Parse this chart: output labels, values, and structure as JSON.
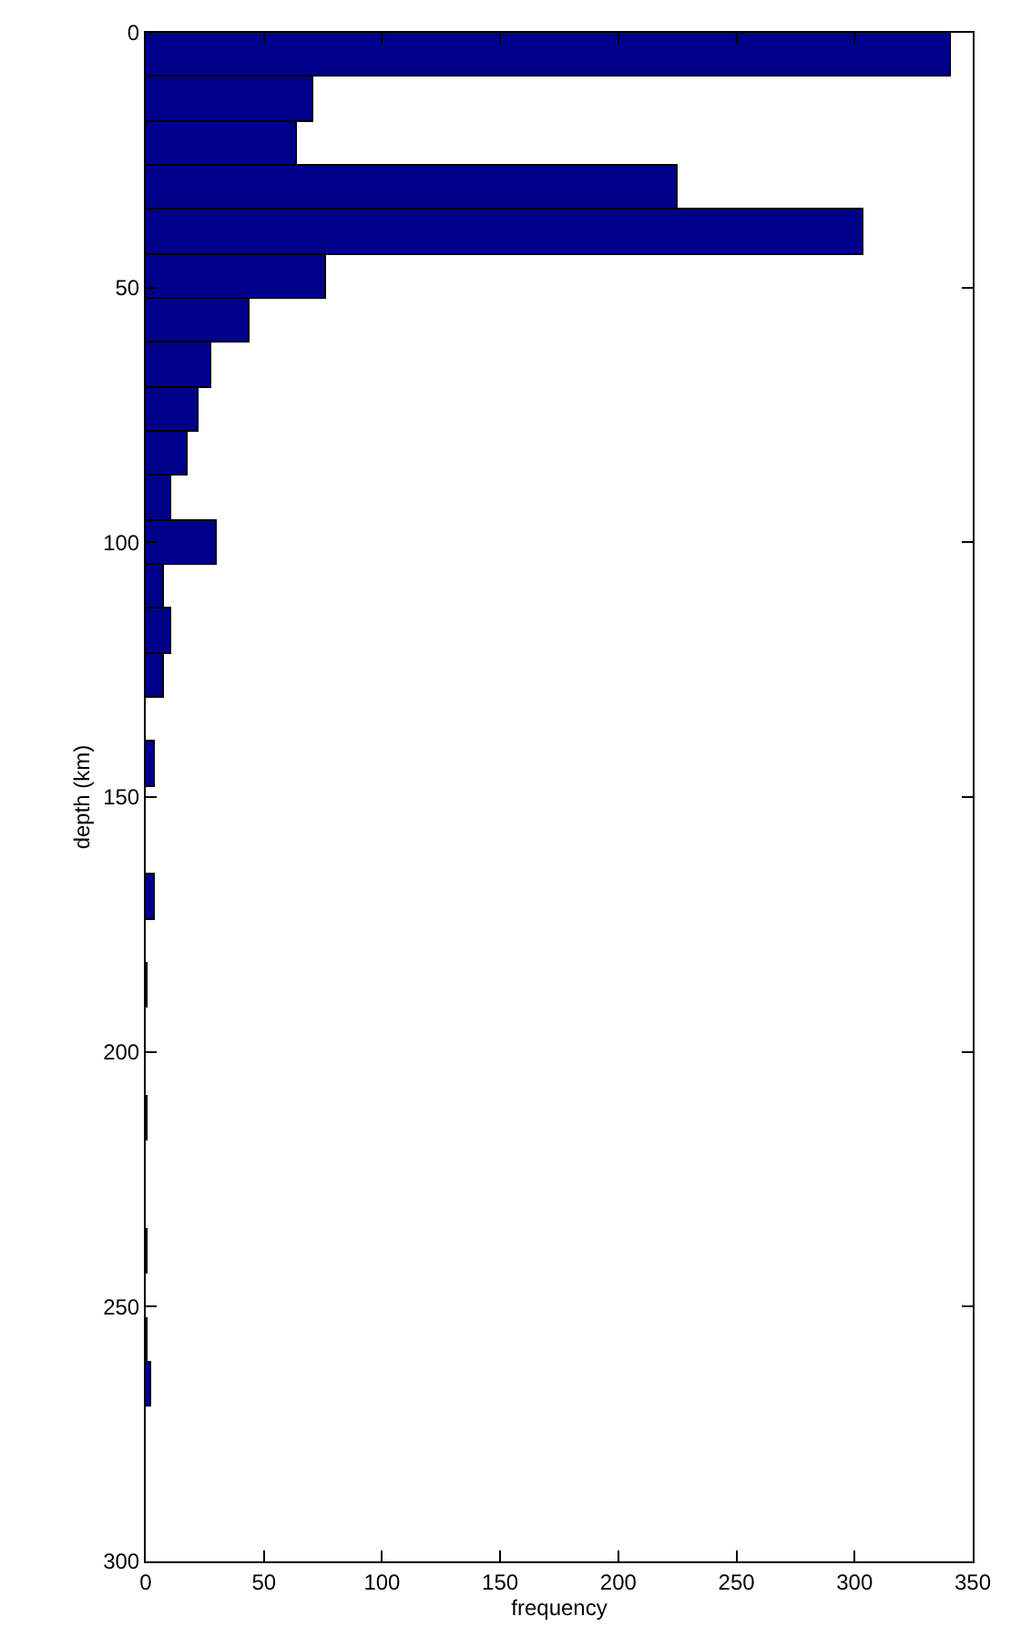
{
  "chart_data": {
    "type": "histogram",
    "orientation": "horizontal",
    "xlabel": "frequency",
    "ylabel": "depth (km)",
    "bins": [
      0,
      8.7,
      17.4,
      26.1,
      34.8,
      43.5,
      52.2,
      60.9,
      69.6,
      78.3,
      87,
      95.7,
      104.4,
      113.1,
      121.8,
      130.5,
      139.2,
      147.9,
      156.6,
      165.3,
      174,
      182.7,
      191.4,
      200.1,
      208.8,
      217.5,
      226.2,
      234.9,
      243.6,
      252.3,
      261,
      269.7
    ],
    "values": [
      341,
      71,
      64,
      225,
      304,
      76,
      44,
      28,
      22,
      18,
      11,
      30,
      8,
      11,
      8,
      0,
      4,
      0,
      0,
      4,
      0,
      1,
      0,
      0,
      1,
      0,
      0,
      1,
      0,
      1,
      2
    ],
    "color": "#00008b",
    "xlim": [
      0,
      350
    ],
    "xticks": [
      0,
      50,
      100,
      150,
      200,
      250,
      300,
      350
    ],
    "ylim": [
      300,
      0
    ],
    "yticks": [
      0,
      50,
      100,
      150,
      200,
      250,
      300
    ]
  }
}
